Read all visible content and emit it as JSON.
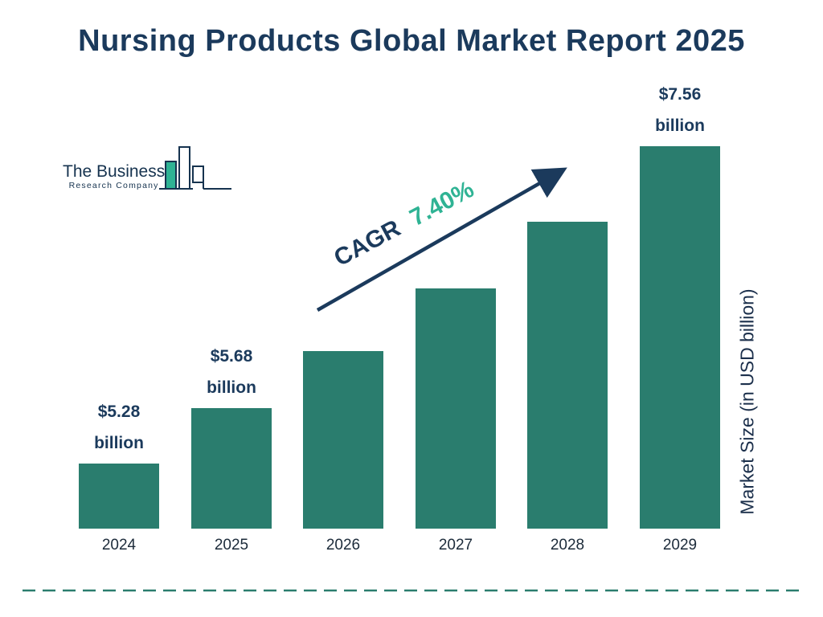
{
  "logo": {
    "line1": "The Business",
    "line2": "Research Company"
  },
  "chart_data": {
    "type": "bar",
    "title": "Nursing Products Global Market Report 2025",
    "categories": [
      "2024",
      "2025",
      "2026",
      "2027",
      "2028",
      "2029"
    ],
    "values": [
      5.28,
      5.68,
      6.09,
      6.54,
      7.02,
      7.56
    ],
    "bar_labels": [
      "$5.28 billion",
      "$5.68 billion",
      null,
      null,
      null,
      "$7.56 billion"
    ],
    "ylabel": "Market Size (in USD billion)",
    "xlabel": "",
    "annotation": {
      "label": "CAGR",
      "value": "7.40%"
    },
    "legend": "none",
    "grid": false,
    "colors": {
      "bar": "#2a7d6e",
      "title": "#1b3a5c",
      "value_label": "#1b3a5c",
      "cagr_value": "#2fb394",
      "arrow": "#1b3a5c",
      "dashed_line": "#2a7d6e"
    }
  }
}
